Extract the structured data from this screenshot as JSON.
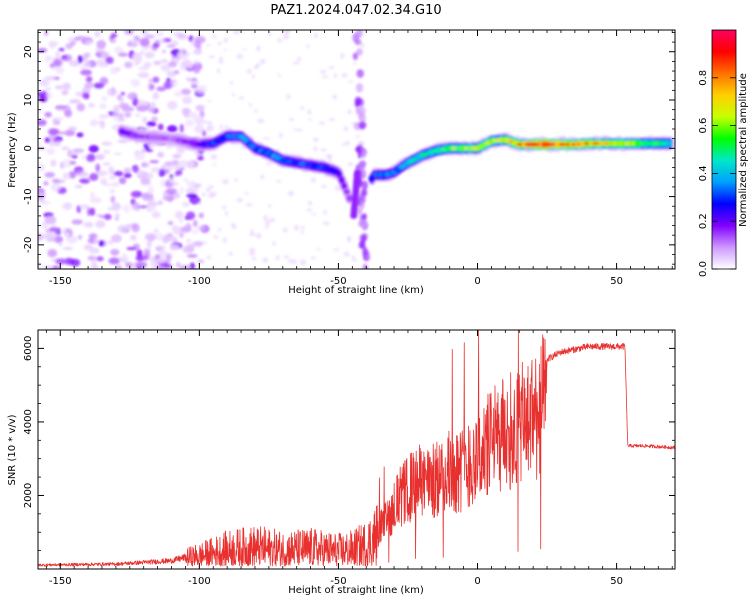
{
  "title": "PAZ1.2024.047.02.34.G10",
  "chart_data": [
    {
      "type": "heatmap",
      "xlabel": "Height of straight line (km)",
      "ylabel": "Frequency (Hz)",
      "xlim": [
        -158,
        71
      ],
      "ylim": [
        -25,
        24.5
      ],
      "xticks": [
        -150,
        -100,
        -50,
        0,
        50
      ],
      "yticks": [
        -20,
        -10,
        0,
        10,
        20
      ],
      "colorbar": {
        "label": "Normalized spectral amplitude",
        "range": [
          0,
          1
        ],
        "ticks": [
          0.0,
          0.2,
          0.4,
          0.6,
          0.8
        ],
        "colors": [
          "#ffffff",
          "#ce98ff",
          "#8000ff",
          "#0000ff",
          "#00a0ff",
          "#00e8c8",
          "#00ff00",
          "#c8ff00",
          "#ffd000",
          "#ff7000",
          "#ff0000",
          "#ff0060"
        ]
      },
      "ridge": [
        {
          "x": -128,
          "y": 3.5,
          "a": 0.2
        },
        {
          "x": -122,
          "y": 2.5,
          "a": 0.15
        },
        {
          "x": -110,
          "y": 2.0,
          "a": 0.12
        },
        {
          "x": -100,
          "y": 0.8,
          "a": 0.2
        },
        {
          "x": -95,
          "y": 1.0,
          "a": 0.3
        },
        {
          "x": -90,
          "y": 2.5,
          "a": 0.3
        },
        {
          "x": -85,
          "y": 2.5,
          "a": 0.35
        },
        {
          "x": -80,
          "y": 0.0,
          "a": 0.3
        },
        {
          "x": -75,
          "y": -1.0,
          "a": 0.35
        },
        {
          "x": -70,
          "y": -2.5,
          "a": 0.35
        },
        {
          "x": -65,
          "y": -3.0,
          "a": 0.3
        },
        {
          "x": -60,
          "y": -3.5,
          "a": 0.3
        },
        {
          "x": -55,
          "y": -4.0,
          "a": 0.3
        },
        {
          "x": -50,
          "y": -5.0,
          "a": 0.25
        },
        {
          "x": -47,
          "y": -9.0,
          "a": 0.15
        },
        {
          "x": -45,
          "y": -12.0,
          "a": 0.15
        },
        {
          "x": -37,
          "y": -5.5,
          "a": 0.3
        },
        {
          "x": -33,
          "y": -5.5,
          "a": 0.35
        },
        {
          "x": -30,
          "y": -5.0,
          "a": 0.35
        },
        {
          "x": -25,
          "y": -3.0,
          "a": 0.4
        },
        {
          "x": -20,
          "y": -1.5,
          "a": 0.45
        },
        {
          "x": -15,
          "y": -0.5,
          "a": 0.5
        },
        {
          "x": -10,
          "y": 0.0,
          "a": 0.55
        },
        {
          "x": -5,
          "y": 0.0,
          "a": 0.6
        },
        {
          "x": 0,
          "y": 0.0,
          "a": 0.6
        },
        {
          "x": 5,
          "y": 1.5,
          "a": 0.6
        },
        {
          "x": 10,
          "y": 1.8,
          "a": 0.65
        },
        {
          "x": 15,
          "y": 0.8,
          "a": 0.75
        },
        {
          "x": 20,
          "y": 0.8,
          "a": 0.85
        },
        {
          "x": 25,
          "y": 0.8,
          "a": 0.9
        },
        {
          "x": 30,
          "y": 0.8,
          "a": 0.85
        },
        {
          "x": 35,
          "y": 0.8,
          "a": 0.8
        },
        {
          "x": 40,
          "y": 1.0,
          "a": 0.75
        },
        {
          "x": 45,
          "y": 1.0,
          "a": 0.7
        },
        {
          "x": 50,
          "y": 1.0,
          "a": 0.68
        },
        {
          "x": 55,
          "y": 1.0,
          "a": 0.65
        },
        {
          "x": 60,
          "y": 1.0,
          "a": 0.55
        },
        {
          "x": 65,
          "y": 1.0,
          "a": 0.5
        },
        {
          "x": 70,
          "y": 1.0,
          "a": 0.45
        }
      ]
    },
    {
      "type": "line",
      "xlabel": "Height of straight line (km)",
      "ylabel": "SNR (10 * v/v)",
      "xlim": [
        -158,
        71
      ],
      "ylim": [
        0,
        6500
      ],
      "xticks": [
        -150,
        -100,
        -50,
        0,
        50
      ],
      "yticks": [
        2000,
        4000,
        6000
      ],
      "color": "#e8312f",
      "envelope": [
        {
          "x": -158,
          "y": 120
        },
        {
          "x": -130,
          "y": 150
        },
        {
          "x": -110,
          "y": 250
        },
        {
          "x": -100,
          "y": 450
        },
        {
          "x": -90,
          "y": 700
        },
        {
          "x": -80,
          "y": 800
        },
        {
          "x": -70,
          "y": 700
        },
        {
          "x": -60,
          "y": 750
        },
        {
          "x": -50,
          "y": 650
        },
        {
          "x": -45,
          "y": 700
        },
        {
          "x": -40,
          "y": 900
        },
        {
          "x": -33,
          "y": 1600
        },
        {
          "x": -30,
          "y": 2200
        },
        {
          "x": -25,
          "y": 2700
        },
        {
          "x": -20,
          "y": 3000
        },
        {
          "x": -15,
          "y": 3000
        },
        {
          "x": -10,
          "y": 3300
        },
        {
          "x": -5,
          "y": 3400
        },
        {
          "x": 0,
          "y": 3800
        },
        {
          "x": 5,
          "y": 4300
        },
        {
          "x": 10,
          "y": 4600
        },
        {
          "x": 15,
          "y": 4800
        },
        {
          "x": 20,
          "y": 5200
        },
        {
          "x": 25,
          "y": 5700
        },
        {
          "x": 30,
          "y": 5900
        },
        {
          "x": 40,
          "y": 6050
        },
        {
          "x": 50,
          "y": 6050
        },
        {
          "x": 53,
          "y": 6050
        },
        {
          "x": 54,
          "y": 3350
        },
        {
          "x": 60,
          "y": 3350
        },
        {
          "x": 71,
          "y": 3300
        }
      ]
    }
  ]
}
